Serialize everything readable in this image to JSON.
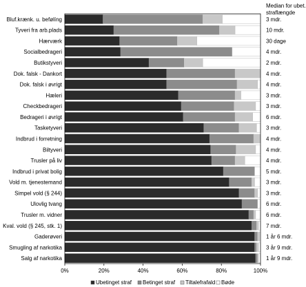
{
  "chart_data": {
    "type": "bar",
    "orientation": "horizontal",
    "stacked": true,
    "right_header": [
      "Median for ubet.",
      "straflængde"
    ],
    "categories": [
      "Bluf.krænk. u. befølíng",
      "Tyveri fra arb.plads",
      "Hærværk",
      "Socialbedrageri",
      "Butikstyveri",
      "Dok. falsk - Dankort",
      "Dok. falsk i øvrigt",
      "Hæleri",
      "Checkbedrageri",
      "Bedrageri i øvrigt",
      "Tasketyveri",
      "Indbrud i forretning",
      "Biltyveri",
      "Trusler på liv",
      "Indbrud i privat bolig",
      "Vold m. tjenestemand",
      "Simpel vold (§ 244)",
      "Ulovlig tvang",
      "Trusler m. vidner",
      "Kval. vold (§ 245, stk. 1)",
      "Gaderøveri",
      "Smugling af narkotika",
      "Salg af narkotika"
    ],
    "medians": [
      "3 mdr.",
      "10 mdr.",
      "30 dage",
      "4 mdr.",
      "2 mdr.",
      "4 mdr.",
      "4 mdr.",
      "3 mdr.",
      "3 mdr.",
      "6 mdr.",
      "3 mdr.",
      "4 mdr.",
      "4 mdr.",
      "4 mdr.",
      "5 mdr.",
      "3 mdr.",
      "3 mdr.",
      "6 mdr.",
      "6 mdr.",
      "7 mdr.",
      "1 år 6 mdr.",
      "3 år 9 mdr.",
      "1 år 9 mdr."
    ],
    "series": [
      {
        "name": "Ubetinget straf",
        "color": "#2b2b2b",
        "values": [
          19.5,
          25,
          28,
          28.5,
          43,
          52,
          52,
          58,
          59.5,
          60.5,
          71,
          74,
          74.5,
          75,
          81,
          84,
          89,
          90.5,
          94,
          95.5,
          97,
          97,
          97.5
        ]
      },
      {
        "name": "Betinget straf",
        "color": "#8c8c8c",
        "values": [
          51,
          54,
          29.5,
          57,
          18,
          35,
          36,
          29,
          27,
          26.5,
          18,
          22.5,
          13,
          12,
          16,
          11.5,
          8,
          8,
          2.5,
          2.5,
          1.5,
          1,
          1
        ]
      },
      {
        "name": "Tiltalefrafald",
        "color": "#c8c8c8",
        "values": [
          10,
          8,
          10,
          0,
          9.5,
          13,
          10.5,
          3,
          11,
          9,
          9,
          3.5,
          10,
          5,
          0,
          1.5,
          1.5,
          0,
          1,
          1,
          1,
          1,
          0.5
        ]
      },
      {
        "name": "Bøde",
        "color": "#ffffff",
        "values": [
          19.5,
          13,
          32.5,
          14.5,
          29.5,
          0,
          1.5,
          10,
          2.5,
          4,
          2,
          0,
          2.5,
          8,
          3,
          3,
          1.5,
          1.5,
          2.5,
          1,
          0.5,
          1,
          1
        ]
      }
    ],
    "x_ticks": [
      "0%",
      "20%",
      "40%",
      "60%",
      "80%",
      "100%"
    ],
    "xlim": [
      0,
      100
    ],
    "grid": false,
    "legend": "bottom"
  }
}
